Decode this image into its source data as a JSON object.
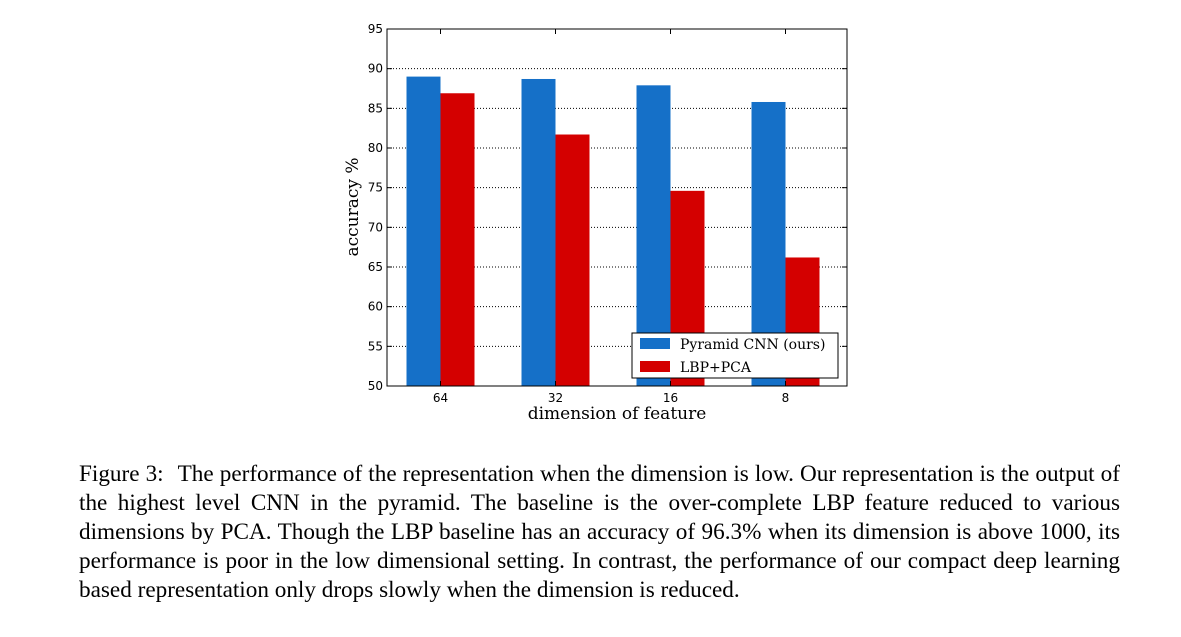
{
  "chart_data": {
    "type": "bar",
    "categories": [
      "64",
      "32",
      "16",
      "8"
    ],
    "series": [
      {
        "name": "Pyramid CNN (ours)",
        "values": [
          89.0,
          88.7,
          87.9,
          85.8
        ],
        "color": "#1570c8"
      },
      {
        "name": "LBP+PCA",
        "values": [
          86.9,
          81.7,
          74.6,
          66.2
        ],
        "color": "#d40000"
      }
    ],
    "xlabel": "dimension of feature",
    "ylabel": "accuracy %",
    "ylim": [
      50,
      95
    ],
    "yticks": [
      "50",
      "55",
      "60",
      "65",
      "70",
      "75",
      "80",
      "85",
      "90",
      "95"
    ],
    "grid": "horizontal dotted",
    "legend_position": "lower-right"
  },
  "caption": {
    "label": "Figure 3:",
    "text": "The performance of the representation when the dimension is low. Our representation is the output of the highest level CNN in the pyramid. The baseline is the over-complete LBP feature reduced to various dimensions by PCA. Though the LBP baseline has an accuracy of 96.3% when its dimension is above 1000, its performance is poor in the low dimensional setting. In contrast, the performance of our compact deep learning based representation only drops slowly when the dimension is reduced."
  }
}
